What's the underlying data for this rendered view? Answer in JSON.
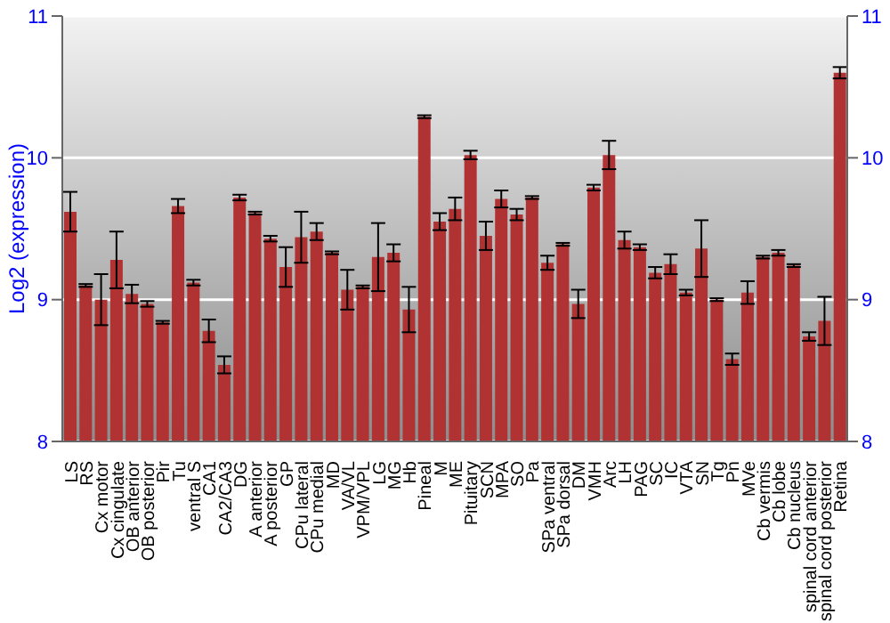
{
  "chart_data": {
    "type": "bar",
    "ylabel": "Log2 (expression)",
    "categories": [
      "LS",
      "RS",
      "Cx motor",
      "Cx cingulate",
      "OB anterior",
      "OB posterior",
      "Pir",
      "Tu",
      "ventral S",
      "CA1",
      "CA2/CA3",
      "DG",
      "A anterior",
      "A posterior",
      "GP",
      "CPu lateral",
      "CPu medial",
      "MD",
      "VA/VL",
      "VPM/VPL",
      "LG",
      "MG",
      "Hb",
      "Pineal",
      "M",
      "ME",
      "Pituitary",
      "SCN",
      "MPA",
      "SO",
      "Pa",
      "SPa ventral",
      "SPa dorsal",
      "DM",
      "VMH",
      "Arc",
      "LH",
      "PAG",
      "SC",
      "IC",
      "VTA",
      "SN",
      "Tg",
      "Pn",
      "MVe",
      "Cb vermis",
      "Cb lobe",
      "Cb nucleus",
      "spinal cord anterior",
      "spinal cord posterior",
      "Retina"
    ],
    "values": [
      9.62,
      9.1,
      9.0,
      9.28,
      9.04,
      8.97,
      8.84,
      9.66,
      9.12,
      8.78,
      8.54,
      9.72,
      9.61,
      9.43,
      9.23,
      9.44,
      9.48,
      9.33,
      9.07,
      9.09,
      9.3,
      9.33,
      8.93,
      10.29,
      9.55,
      9.64,
      10.02,
      9.45,
      9.71,
      9.6,
      9.72,
      9.26,
      9.39,
      8.97,
      9.79,
      10.02,
      9.42,
      9.37,
      9.19,
      9.25,
      9.05,
      9.36,
      9.0,
      8.58,
      9.05,
      9.3,
      9.33,
      9.24,
      8.74,
      8.85,
      10.6
    ],
    "errors": [
      0.14,
      0.01,
      0.18,
      0.2,
      0.065,
      0.02,
      0.01,
      0.05,
      0.02,
      0.08,
      0.06,
      0.02,
      0.01,
      0.02,
      0.14,
      0.18,
      0.06,
      0.01,
      0.14,
      0.01,
      0.24,
      0.06,
      0.16,
      0.01,
      0.06,
      0.08,
      0.03,
      0.1,
      0.06,
      0.04,
      0.01,
      0.05,
      0.01,
      0.1,
      0.02,
      0.1,
      0.06,
      0.02,
      0.04,
      0.07,
      0.02,
      0.2,
      0.01,
      0.04,
      0.08,
      0.01,
      0.02,
      0.01,
      0.03,
      0.17,
      0.04
    ],
    "color": "#b03232",
    "ylim": [
      8,
      11
    ],
    "yticks": [
      8,
      9,
      10,
      11
    ],
    "y2lim": [
      8,
      11
    ],
    "y2ticks": [
      8,
      9,
      10,
      11
    ],
    "grid": "y",
    "legend": false
  }
}
